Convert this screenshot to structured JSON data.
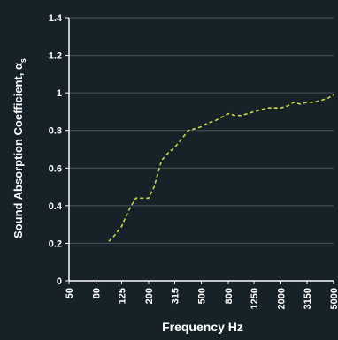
{
  "chart_data": {
    "type": "line",
    "xlabel": "Frequency Hz",
    "ylabel": "Sound Absorption Coefficient, α",
    "ylabel_subscript": "s",
    "x_scale": "log",
    "ylim": [
      0,
      1.4
    ],
    "y_ticks": [
      "0",
      "0.2",
      "0.4",
      "0.6",
      "0.8",
      "1",
      "1.2",
      "1.4"
    ],
    "x_ticks": [
      "50",
      "80",
      "125",
      "200",
      "315",
      "500",
      "800",
      "1250",
      "2000",
      "3150",
      "5000"
    ],
    "grid": "horizontal",
    "series": [
      {
        "line_style": "dashed",
        "color": "#c9d64a",
        "x": [
          100,
          110,
          125,
          140,
          160,
          180,
          200,
          220,
          250,
          280,
          315,
          360,
          400,
          450,
          500,
          560,
          630,
          710,
          800,
          900,
          1000,
          1120,
          1250,
          1400,
          1600,
          1800,
          2000,
          2240,
          2500,
          2800,
          3150,
          3550,
          4000,
          4500,
          5000
        ],
        "y": [
          0.21,
          0.24,
          0.29,
          0.37,
          0.44,
          0.44,
          0.44,
          0.5,
          0.64,
          0.68,
          0.71,
          0.76,
          0.8,
          0.81,
          0.82,
          0.84,
          0.85,
          0.87,
          0.89,
          0.88,
          0.88,
          0.89,
          0.9,
          0.91,
          0.92,
          0.92,
          0.92,
          0.93,
          0.95,
          0.94,
          0.95,
          0.95,
          0.96,
          0.97,
          0.99
        ]
      }
    ]
  }
}
